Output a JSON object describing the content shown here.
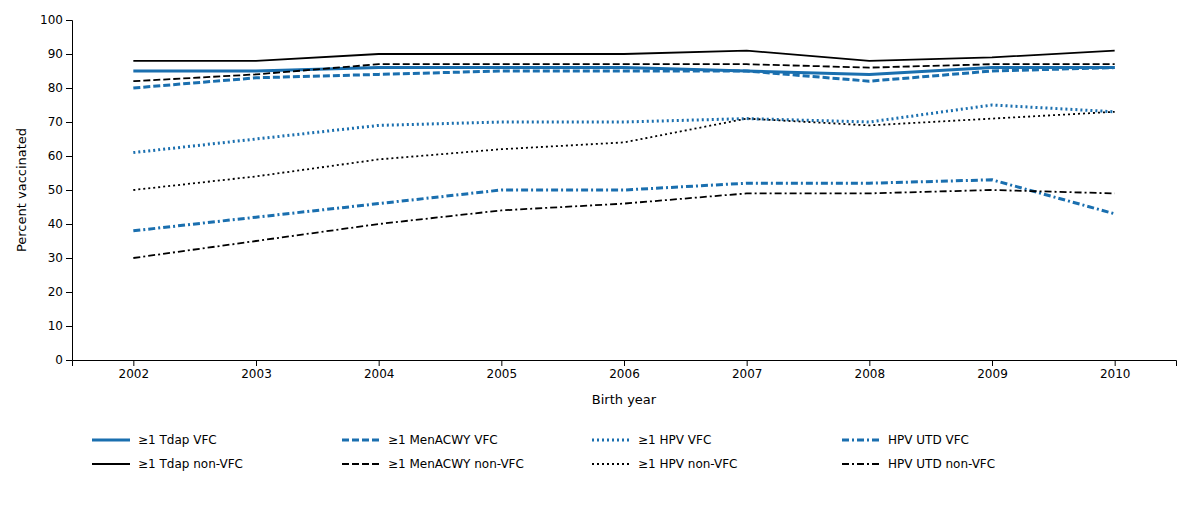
{
  "chart_data": {
    "type": "line",
    "x": [
      2002,
      2003,
      2004,
      2005,
      2006,
      2007,
      2008,
      2009,
      2010
    ],
    "xlabel": "Birth year",
    "ylabel": "Percent vaccinated",
    "xlim": [
      2001.5,
      2010.5
    ],
    "xticks": [
      2002,
      2003,
      2004,
      2005,
      2006,
      2007,
      2008,
      2009,
      2010
    ],
    "ylim": [
      0,
      100
    ],
    "yticks": [
      0,
      10,
      20,
      30,
      40,
      50,
      60,
      70,
      80,
      90,
      100
    ],
    "grid": false,
    "legend": "bottom",
    "series": [
      {
        "name": "≥1 Tdap VFC",
        "color": "#1a6faf",
        "line_style": "solid",
        "values": [
          85,
          85,
          86,
          86,
          86,
          85,
          84,
          86,
          86
        ]
      },
      {
        "name": "≥1 MenACWY VFC",
        "color": "#1a6faf",
        "line_style": "dashed",
        "values": [
          80,
          83,
          84,
          85,
          85,
          85,
          82,
          85,
          86
        ]
      },
      {
        "name": "≥1 HPV VFC",
        "color": "#1a6faf",
        "line_style": "dotted",
        "values": [
          61,
          65,
          69,
          70,
          70,
          71,
          70,
          75,
          73
        ]
      },
      {
        "name": "HPV UTD VFC",
        "color": "#1a6faf",
        "line_style": "dashdot",
        "values": [
          38,
          42,
          46,
          50,
          50,
          52,
          52,
          53,
          43
        ]
      },
      {
        "name": "≥1 Tdap non-VFC",
        "color": "#000000",
        "line_style": "solid",
        "values": [
          88,
          88,
          90,
          90,
          90,
          91,
          88,
          89,
          91
        ]
      },
      {
        "name": "≥1 MenACWY non-VFC",
        "color": "#000000",
        "line_style": "dashed",
        "values": [
          82,
          84,
          87,
          87,
          87,
          87,
          86,
          87,
          87
        ]
      },
      {
        "name": "≥1 HPV non-VFC",
        "color": "#000000",
        "line_style": "dotted",
        "values": [
          50,
          54,
          59,
          62,
          64,
          71,
          69,
          71,
          73
        ]
      },
      {
        "name": "HPV UTD non-VFC",
        "color": "#000000",
        "line_style": "dashdot",
        "values": [
          30,
          35,
          40,
          44,
          46,
          49,
          49,
          50,
          49
        ]
      }
    ]
  }
}
